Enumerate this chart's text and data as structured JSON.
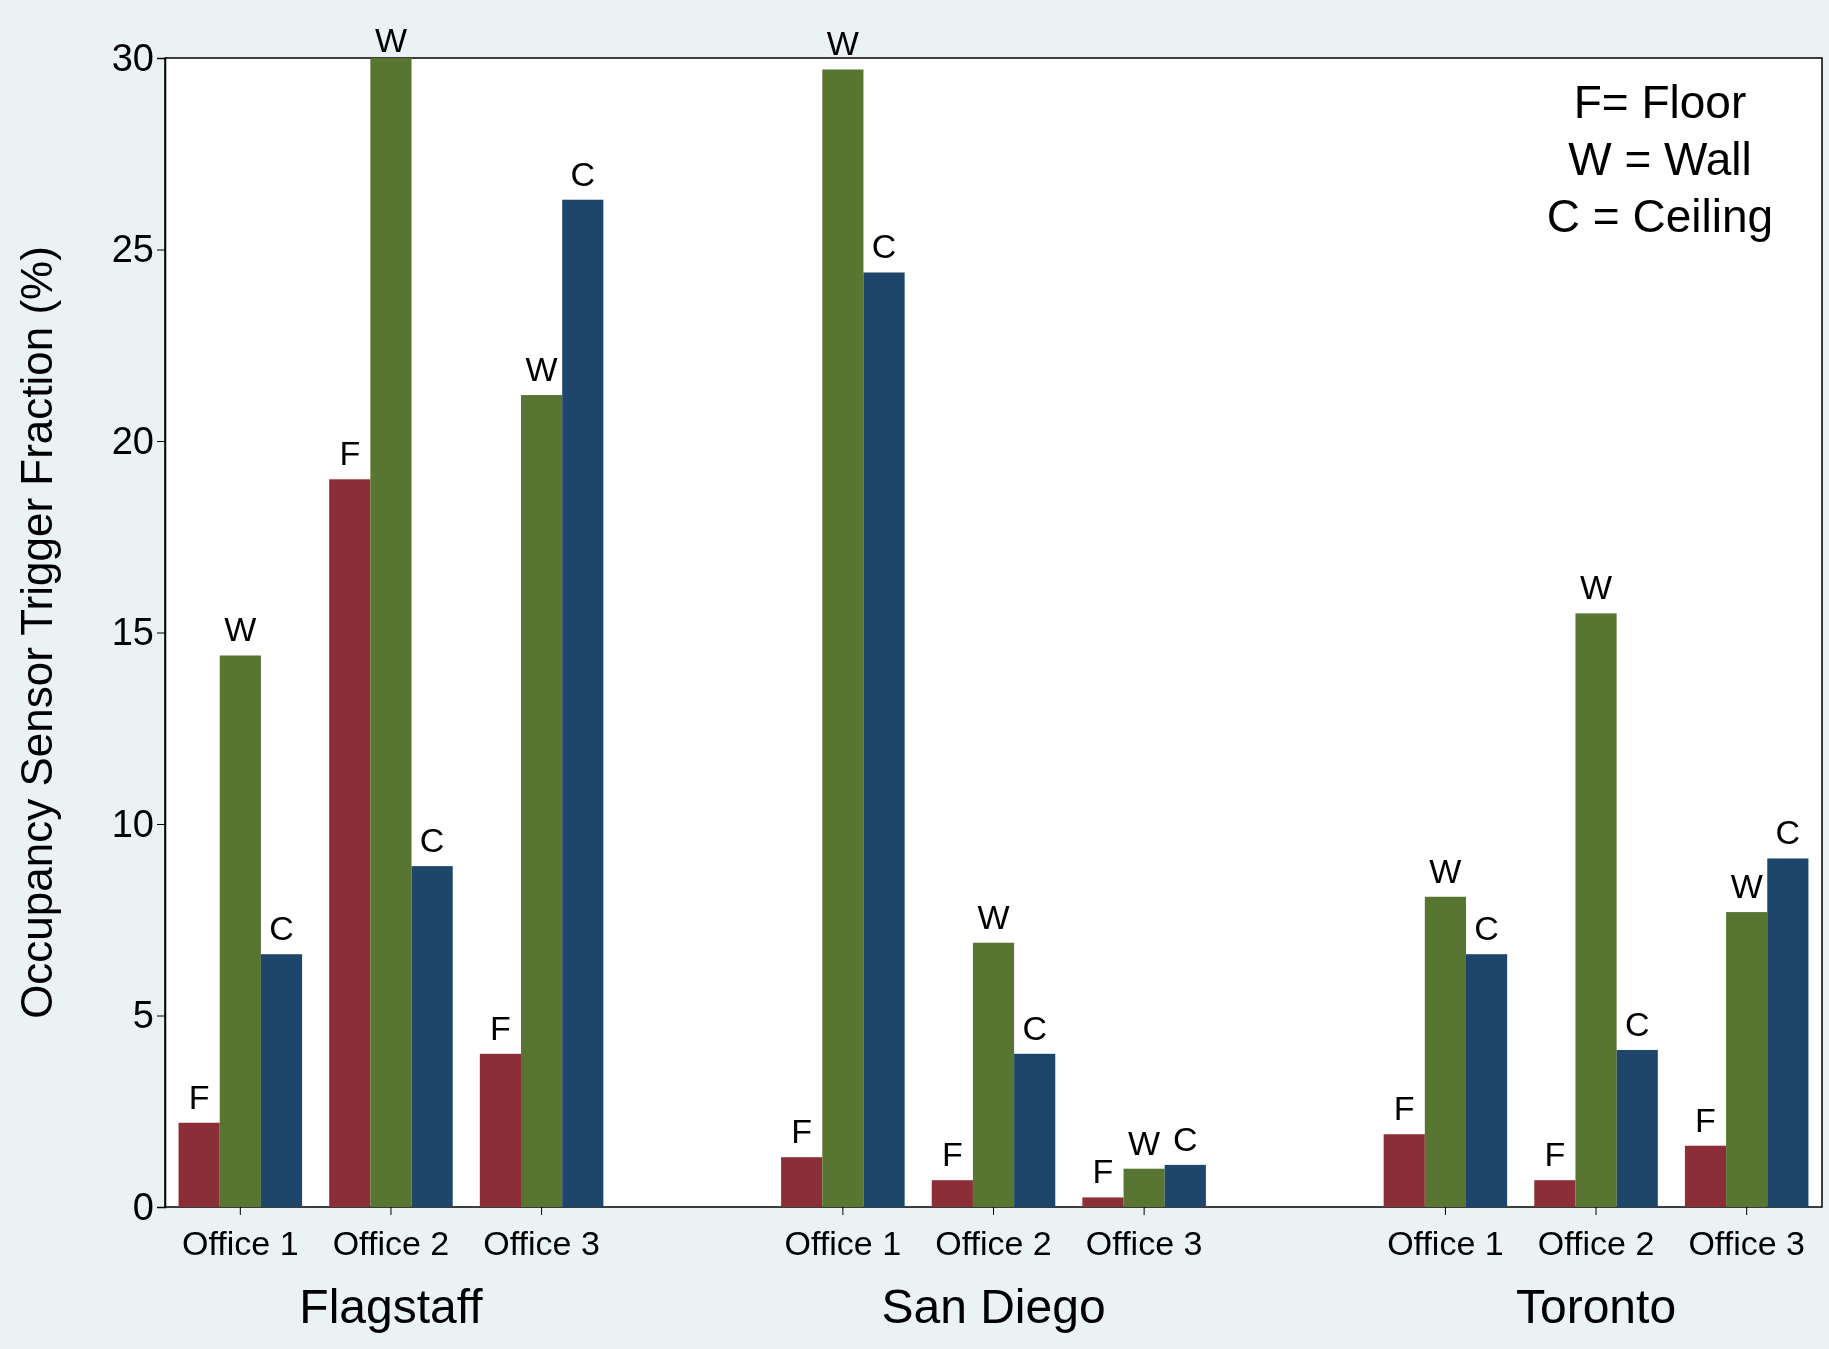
{
  "chart_data": {
    "type": "bar",
    "ylabel": "Occupancy Sensor Trigger Fraction (%)",
    "categories": [
      "Office 1",
      "Office 2",
      "Office 3",
      null,
      "Office 1",
      "Office 2",
      "Office 3",
      null,
      "Office 1",
      "Office 2",
      "Office 3"
    ],
    "series": [
      {
        "color": "#8c2e37",
        "values": [
          2.2,
          19.0,
          4.0,
          null,
          1.3,
          0.7,
          0.25,
          null,
          1.9,
          0.7,
          1.6
        ],
        "value_labels": [
          "F",
          "F",
          "F",
          null,
          "F",
          "F",
          "F",
          null,
          "F",
          "F",
          "F"
        ]
      },
      {
        "color": "#587531",
        "values": [
          14.4,
          30.0,
          21.2,
          null,
          29.7,
          6.9,
          1.0,
          null,
          8.1,
          15.5,
          7.7
        ],
        "value_labels": [
          "W",
          "W",
          "W",
          null,
          "W",
          "W",
          "W",
          null,
          "W",
          "W",
          "W"
        ]
      },
      {
        "color": "#1e466b",
        "values": [
          6.6,
          8.9,
          26.3,
          null,
          24.4,
          4.0,
          1.1,
          null,
          6.6,
          4.1,
          9.1
        ],
        "value_labels": [
          "C",
          "C",
          "C",
          null,
          "C",
          "C",
          "C",
          null,
          "C",
          "C",
          "C"
        ]
      }
    ],
    "ylim": [
      0,
      30
    ],
    "yticks": [
      0,
      5,
      10,
      15,
      20,
      25,
      30
    ],
    "grid": false,
    "annotations": [
      "Flagstaff",
      "San Diego",
      "Toronto",
      "F= Floor\nW = Wall\nC = Ceiling"
    ]
  }
}
